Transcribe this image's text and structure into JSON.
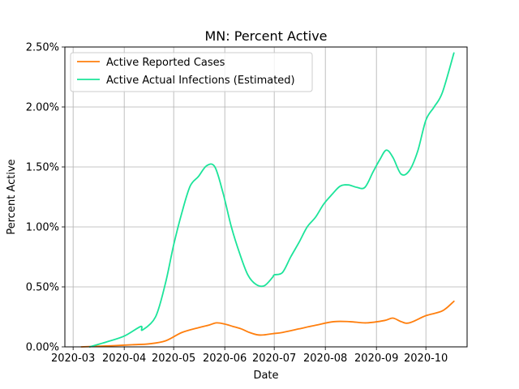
{
  "chart_data": {
    "type": "line",
    "title": "MN: Percent Active",
    "xlabel": "Date",
    "ylabel": "Percent Active",
    "x_tick_labels": [
      "2020-03",
      "2020-04",
      "2020-05",
      "2020-06",
      "2020-07",
      "2020-08",
      "2020-09",
      "2020-10"
    ],
    "x_tick_dates": [
      "2020-03-01",
      "2020-04-01",
      "2020-05-01",
      "2020-06-01",
      "2020-07-01",
      "2020-08-01",
      "2020-09-01",
      "2020-10-01"
    ],
    "y_tick_labels": [
      "0.00%",
      "0.50%",
      "1.00%",
      "1.50%",
      "2.00%",
      "2.50%"
    ],
    "y_tick_values": [
      0,
      0.5,
      1.0,
      1.5,
      2.0,
      2.5
    ],
    "xlim": [
      "2020-02-25",
      "2020-10-26"
    ],
    "ylim": [
      0,
      2.5
    ],
    "grid": true,
    "legend_position": "upper-left",
    "series": [
      {
        "name": "Active Reported Cases",
        "color": "#ff7f0e",
        "x": [
          "2020-03-06",
          "2020-03-16",
          "2020-03-26",
          "2020-04-06",
          "2020-04-16",
          "2020-04-26",
          "2020-05-06",
          "2020-05-16",
          "2020-05-22",
          "2020-05-27",
          "2020-06-01",
          "2020-06-06",
          "2020-06-11",
          "2020-06-16",
          "2020-06-21",
          "2020-06-25",
          "2020-06-30",
          "2020-07-06",
          "2020-07-16",
          "2020-07-26",
          "2020-08-06",
          "2020-08-16",
          "2020-08-26",
          "2020-09-06",
          "2020-09-11",
          "2020-09-16",
          "2020-09-21",
          "2020-10-01",
          "2020-10-11",
          "2020-10-18"
        ],
        "values": [
          0.0,
          0.005,
          0.01,
          0.018,
          0.025,
          0.05,
          0.12,
          0.16,
          0.18,
          0.2,
          0.19,
          0.17,
          0.15,
          0.12,
          0.1,
          0.1,
          0.11,
          0.12,
          0.15,
          0.18,
          0.21,
          0.21,
          0.2,
          0.22,
          0.24,
          0.21,
          0.2,
          0.26,
          0.3,
          0.38
        ]
      },
      {
        "name": "Active Actual Infections (Estimated)",
        "color": "#1ce49a",
        "x": [
          "2020-03-11",
          "2020-03-21",
          "2020-04-01",
          "2020-04-11",
          "2020-04-12",
          "2020-04-20",
          "2020-04-26",
          "2020-05-01",
          "2020-05-06",
          "2020-05-11",
          "2020-05-16",
          "2020-05-21",
          "2020-05-26",
          "2020-05-31",
          "2020-06-05",
          "2020-06-10",
          "2020-06-15",
          "2020-06-20",
          "2020-06-25",
          "2020-06-30",
          "2020-07-01",
          "2020-07-06",
          "2020-07-11",
          "2020-07-16",
          "2020-07-21",
          "2020-07-26",
          "2020-07-31",
          "2020-08-05",
          "2020-08-10",
          "2020-08-15",
          "2020-08-20",
          "2020-08-25",
          "2020-08-30",
          "2020-09-03",
          "2020-09-07",
          "2020-09-11",
          "2020-09-16",
          "2020-09-21",
          "2020-09-26",
          "2020-10-01",
          "2020-10-06",
          "2020-10-11",
          "2020-10-18"
        ],
        "values": [
          0.0,
          0.04,
          0.09,
          0.17,
          0.14,
          0.25,
          0.53,
          0.85,
          1.12,
          1.34,
          1.42,
          1.51,
          1.5,
          1.28,
          1.0,
          0.78,
          0.6,
          0.52,
          0.51,
          0.58,
          0.6,
          0.62,
          0.75,
          0.87,
          1.0,
          1.08,
          1.19,
          1.27,
          1.34,
          1.35,
          1.33,
          1.33,
          1.46,
          1.56,
          1.64,
          1.58,
          1.44,
          1.47,
          1.63,
          1.89,
          2.0,
          2.12,
          2.45
        ]
      }
    ]
  }
}
